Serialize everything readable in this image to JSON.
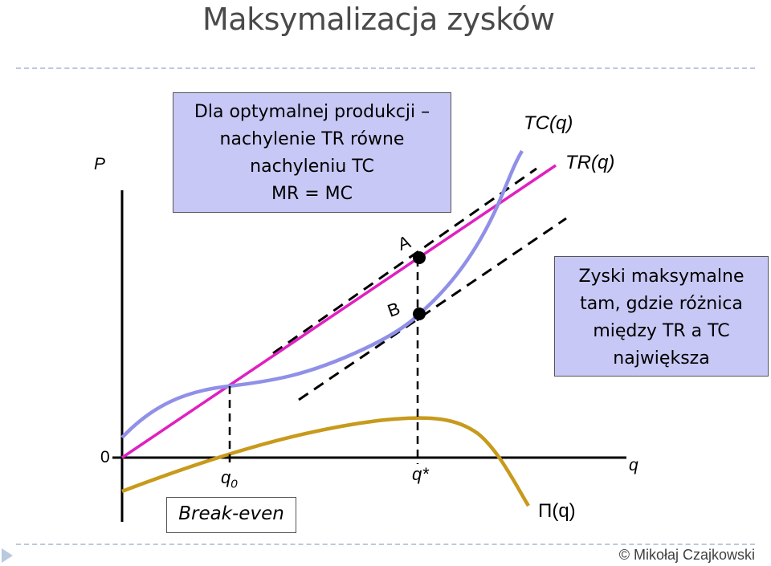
{
  "slide": {
    "title": "Maksymalizacja zysków",
    "footer": "© Mikołaj Czajkowski"
  },
  "axes": {
    "y_label": "P",
    "x_label": "q",
    "origin_label": "0"
  },
  "curves": {
    "tc_label": "TC(q)",
    "tr_label": "TR(q)",
    "profit_label": "Π(q)"
  },
  "points": {
    "a_label": "A",
    "b_label": "B",
    "q0_label": "q",
    "q0_sub": "0",
    "qstar_label": "q*"
  },
  "boxes": {
    "optimal": [
      "Dla optymalnej produkcji –",
      "nachylenie TR równe",
      "nachyleniu TC",
      "MR = MC"
    ],
    "max_profit": [
      "Zyski maksymalne",
      "tam, gdzie różnica",
      "między TR a TC",
      "największa"
    ],
    "break_even": "Break-even"
  },
  "colors": {
    "tc": "#9090e8",
    "tr": "#e020c0",
    "profit": "#c89a1c",
    "box_fill": "#c8c8f6",
    "dashed": "#000000"
  }
}
